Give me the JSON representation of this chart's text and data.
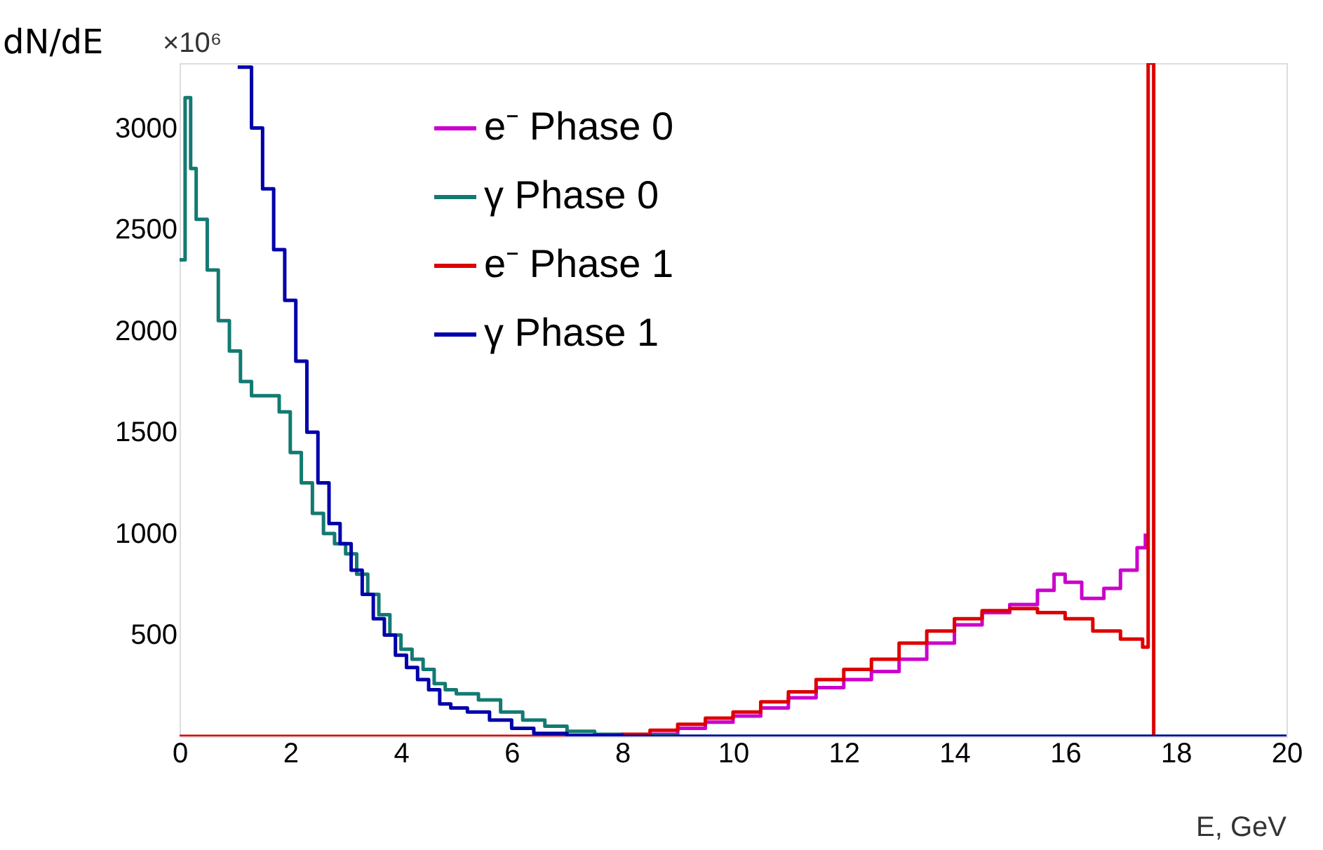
{
  "chart_data": {
    "type": "step",
    "xlabel": "E, GeV",
    "ylabel": "dN/dE",
    "annotations": [
      "×10⁶"
    ],
    "xlim": [
      0,
      20
    ],
    "ylim": [
      0,
      3320
    ],
    "xticks": [
      0,
      2,
      4,
      6,
      8,
      10,
      12,
      14,
      16,
      18,
      20
    ],
    "yticks": [
      500,
      1000,
      1500,
      2000,
      2500,
      3000
    ],
    "grid": false,
    "legend": "top",
    "line_style": "solid",
    "series": [
      {
        "name": "e⁻ Phase 0",
        "color": "#cc00cc",
        "x": [
          8.5,
          9,
          9.5,
          10,
          10.5,
          11,
          11.5,
          12,
          12.5,
          13,
          13.5,
          14,
          14.5,
          15,
          15.5,
          15.8,
          16.0,
          16.3,
          16.7,
          17.0,
          17.3,
          17.45
        ],
        "values": [
          10,
          40,
          70,
          100,
          140,
          190,
          240,
          280,
          320,
          380,
          460,
          550,
          610,
          650,
          720,
          800,
          760,
          680,
          730,
          820,
          930,
          1000
        ]
      },
      {
        "name": "γ Phase 0",
        "color": "#137a72",
        "x": [
          0,
          0.1,
          0.2,
          0.3,
          0.5,
          0.7,
          0.9,
          1.1,
          1.3,
          1.6,
          1.8,
          2.0,
          2.2,
          2.4,
          2.6,
          2.8,
          3.0,
          3.2,
          3.4,
          3.6,
          3.8,
          4.0,
          4.2,
          4.4,
          4.6,
          4.8,
          5.0,
          5.4,
          5.8,
          6.2,
          6.6,
          7.0,
          7.5,
          8.0,
          9.0,
          20
        ],
        "values": [
          2350,
          3150,
          2800,
          2550,
          2300,
          2050,
          1900,
          1750,
          1680,
          1680,
          1600,
          1400,
          1250,
          1100,
          1000,
          950,
          900,
          800,
          700,
          600,
          500,
          430,
          380,
          330,
          260,
          230,
          210,
          180,
          120,
          80,
          50,
          25,
          10,
          5,
          0,
          0
        ]
      },
      {
        "name": "e⁻ Phase 1",
        "color": "#dd0000",
        "x": [
          0,
          7.5,
          8,
          8.5,
          9,
          9.5,
          10,
          10.5,
          11,
          11.5,
          12,
          12.5,
          13,
          13.5,
          14,
          14.5,
          15,
          15.5,
          16,
          16.5,
          17,
          17.4,
          17.5,
          17.6
        ],
        "values": [
          0,
          0,
          10,
          30,
          60,
          90,
          120,
          170,
          220,
          280,
          330,
          380,
          460,
          520,
          580,
          620,
          630,
          610,
          580,
          520,
          480,
          440,
          3320,
          0
        ]
      },
      {
        "name": "γ Phase 1",
        "color": "#0000aa",
        "x": [
          1.05,
          1.3,
          1.5,
          1.7,
          1.9,
          2.1,
          2.3,
          2.5,
          2.7,
          2.9,
          3.1,
          3.3,
          3.5,
          3.7,
          3.9,
          4.1,
          4.3,
          4.5,
          4.7,
          4.9,
          5.2,
          5.6,
          6.0,
          6.4,
          7.0,
          8.0,
          20
        ],
        "values": [
          3300,
          3000,
          2700,
          2400,
          2150,
          1850,
          1500,
          1250,
          1050,
          950,
          820,
          700,
          580,
          500,
          400,
          340,
          280,
          230,
          160,
          140,
          120,
          80,
          40,
          15,
          5,
          0,
          0
        ]
      }
    ]
  }
}
